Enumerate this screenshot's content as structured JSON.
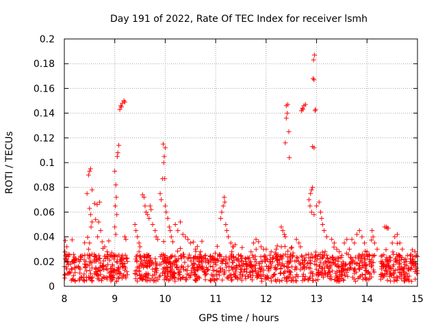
{
  "chart_data": {
    "type": "scatter",
    "title": "Day 191 of 2022, Rate Of TEC Index for receiver lsmh",
    "xlabel": "GPS time / hours",
    "ylabel": "ROTI / TECUs",
    "xlim": [
      8,
      15
    ],
    "ylim": [
      0,
      0.2
    ],
    "xticks": [
      "8",
      "9",
      "10",
      "11",
      "12",
      "13",
      "14",
      "15"
    ],
    "yticks": [
      "0",
      "0.02",
      "0.04",
      "0.06",
      "0.08",
      "0.1",
      "0.12",
      "0.14",
      "0.16",
      "0.18",
      "0.2"
    ],
    "grid": true,
    "marker": "+",
    "color": "#ff0000",
    "series": [
      {
        "name": "ROTI",
        "points": [
          [
            8.02,
            0.037
          ],
          [
            8.05,
            0.032
          ],
          [
            8.08,
            0.024
          ],
          [
            8.12,
            0.018
          ],
          [
            8.2,
            0.022
          ],
          [
            8.3,
            0.02
          ],
          [
            8.4,
            0.018
          ],
          [
            8.45,
            0.075
          ],
          [
            8.48,
            0.09
          ],
          [
            8.5,
            0.093
          ],
          [
            8.52,
            0.095
          ],
          [
            8.55,
            0.078
          ],
          [
            8.5,
            0.063
          ],
          [
            8.52,
            0.058
          ],
          [
            8.55,
            0.052
          ],
          [
            8.53,
            0.048
          ],
          [
            8.6,
            0.067
          ],
          [
            8.65,
            0.066
          ],
          [
            8.7,
            0.068
          ],
          [
            8.62,
            0.054
          ],
          [
            8.68,
            0.052
          ],
          [
            8.72,
            0.045
          ],
          [
            8.66,
            0.04
          ],
          [
            8.75,
            0.036
          ],
          [
            8.8,
            0.032
          ],
          [
            8.85,
            0.028
          ],
          [
            8.5,
            0.035
          ],
          [
            8.48,
            0.03
          ],
          [
            8.55,
            0.026
          ],
          [
            8.6,
            0.024
          ],
          [
            9.0,
            0.093
          ],
          [
            9.02,
            0.082
          ],
          [
            9.03,
            0.072
          ],
          [
            9.05,
            0.105
          ],
          [
            9.06,
            0.108
          ],
          [
            9.08,
            0.114
          ],
          [
            9.01,
            0.065
          ],
          [
            9.04,
            0.058
          ],
          [
            9.0,
            0.048
          ],
          [
            9.02,
            0.042
          ],
          [
            9.1,
            0.143
          ],
          [
            9.12,
            0.146
          ],
          [
            9.15,
            0.148
          ],
          [
            9.18,
            0.15
          ],
          [
            9.2,
            0.149
          ],
          [
            9.13,
            0.145
          ],
          [
            9.2,
            0.04
          ],
          [
            9.22,
            0.038
          ],
          [
            9.15,
            0.025
          ],
          [
            9.18,
            0.022
          ],
          [
            9.25,
            0.02
          ],
          [
            9.4,
            0.05
          ],
          [
            9.42,
            0.045
          ],
          [
            9.45,
            0.04
          ],
          [
            9.48,
            0.035
          ],
          [
            9.5,
            0.032
          ],
          [
            9.55,
            0.074
          ],
          [
            9.58,
            0.072
          ],
          [
            9.6,
            0.065
          ],
          [
            9.62,
            0.06
          ],
          [
            9.65,
            0.058
          ],
          [
            9.68,
            0.055
          ],
          [
            9.7,
            0.065
          ],
          [
            9.72,
            0.062
          ],
          [
            9.75,
            0.05
          ],
          [
            9.8,
            0.045
          ],
          [
            9.82,
            0.04
          ],
          [
            9.85,
            0.038
          ],
          [
            9.9,
            0.075
          ],
          [
            9.92,
            0.07
          ],
          [
            9.95,
            0.087
          ],
          [
            9.97,
            0.1
          ],
          [
            9.98,
            0.105
          ],
          [
            10.0,
            0.112
          ],
          [
            9.96,
            0.115
          ],
          [
            9.99,
            0.087
          ],
          [
            10.0,
            0.065
          ],
          [
            10.02,
            0.06
          ],
          [
            10.05,
            0.055
          ],
          [
            10.08,
            0.048
          ],
          [
            10.1,
            0.045
          ],
          [
            10.12,
            0.04
          ],
          [
            10.15,
            0.036
          ],
          [
            10.2,
            0.05
          ],
          [
            10.25,
            0.045
          ],
          [
            10.3,
            0.052
          ],
          [
            10.35,
            0.042
          ],
          [
            10.4,
            0.04
          ],
          [
            10.45,
            0.038
          ],
          [
            10.5,
            0.035
          ],
          [
            10.6,
            0.03
          ],
          [
            10.7,
            0.028
          ],
          [
            10.8,
            0.025
          ],
          [
            10.9,
            0.022
          ],
          [
            11.1,
            0.055
          ],
          [
            11.12,
            0.06
          ],
          [
            11.15,
            0.065
          ],
          [
            11.17,
            0.072
          ],
          [
            11.18,
            0.068
          ],
          [
            11.2,
            0.05
          ],
          [
            11.22,
            0.045
          ],
          [
            11.25,
            0.04
          ],
          [
            11.3,
            0.035
          ],
          [
            11.35,
            0.032
          ],
          [
            11.5,
            0.025
          ],
          [
            11.6,
            0.022
          ],
          [
            11.7,
            0.028
          ],
          [
            11.75,
            0.035
          ],
          [
            11.8,
            0.038
          ],
          [
            11.85,
            0.036
          ],
          [
            11.9,
            0.032
          ],
          [
            11.95,
            0.03
          ],
          [
            12.0,
            0.03
          ],
          [
            12.1,
            0.028
          ],
          [
            12.2,
            0.03
          ],
          [
            12.3,
            0.032
          ],
          [
            12.3,
            0.048
          ],
          [
            12.33,
            0.045
          ],
          [
            12.36,
            0.042
          ],
          [
            12.38,
            0.04
          ],
          [
            12.38,
            0.116
          ],
          [
            12.4,
            0.136
          ],
          [
            12.42,
            0.14
          ],
          [
            12.4,
            0.146
          ],
          [
            12.43,
            0.147
          ],
          [
            12.45,
            0.125
          ],
          [
            12.46,
            0.104
          ],
          [
            12.6,
            0.038
          ],
          [
            12.65,
            0.035
          ],
          [
            12.68,
            0.032
          ],
          [
            12.7,
            0.142
          ],
          [
            12.72,
            0.144
          ],
          [
            12.75,
            0.146
          ],
          [
            12.78,
            0.147
          ],
          [
            12.73,
            0.143
          ],
          [
            12.85,
            0.07
          ],
          [
            12.88,
            0.075
          ],
          [
            12.9,
            0.078
          ],
          [
            12.92,
            0.08
          ],
          [
            12.87,
            0.065
          ],
          [
            12.9,
            0.06
          ],
          [
            12.95,
            0.058
          ],
          [
            12.92,
            0.113
          ],
          [
            12.95,
            0.112
          ],
          [
            12.97,
            0.142
          ],
          [
            12.98,
            0.143
          ],
          [
            12.93,
            0.168
          ],
          [
            12.95,
            0.167
          ],
          [
            12.94,
            0.183
          ],
          [
            12.96,
            0.187
          ],
          [
            13.0,
            0.065
          ],
          [
            13.05,
            0.068
          ],
          [
            13.08,
            0.06
          ],
          [
            13.1,
            0.055
          ],
          [
            13.12,
            0.05
          ],
          [
            13.15,
            0.045
          ],
          [
            13.2,
            0.04
          ],
          [
            13.3,
            0.038
          ],
          [
            13.35,
            0.035
          ],
          [
            13.4,
            0.03
          ],
          [
            13.45,
            0.028
          ],
          [
            13.5,
            0.025
          ],
          [
            13.55,
            0.035
          ],
          [
            13.6,
            0.038
          ],
          [
            13.65,
            0.03
          ],
          [
            13.7,
            0.038
          ],
          [
            13.75,
            0.035
          ],
          [
            13.8,
            0.042
          ],
          [
            13.85,
            0.045
          ],
          [
            13.9,
            0.04
          ],
          [
            13.95,
            0.035
          ],
          [
            14.0,
            0.028
          ],
          [
            14.05,
            0.025
          ],
          [
            14.1,
            0.045
          ],
          [
            14.12,
            0.04
          ],
          [
            14.15,
            0.035
          ],
          [
            14.2,
            0.03
          ],
          [
            14.35,
            0.048
          ],
          [
            14.38,
            0.048
          ],
          [
            14.4,
            0.047
          ],
          [
            14.42,
            0.047
          ],
          [
            14.5,
            0.035
          ],
          [
            14.55,
            0.04
          ],
          [
            14.6,
            0.042
          ],
          [
            14.65,
            0.035
          ],
          [
            14.7,
            0.03
          ],
          [
            14.8,
            0.025
          ],
          [
            14.9,
            0.022
          ],
          [
            14.95,
            0.028
          ],
          [
            14.98,
            0.025
          ]
        ]
      }
    ]
  }
}
